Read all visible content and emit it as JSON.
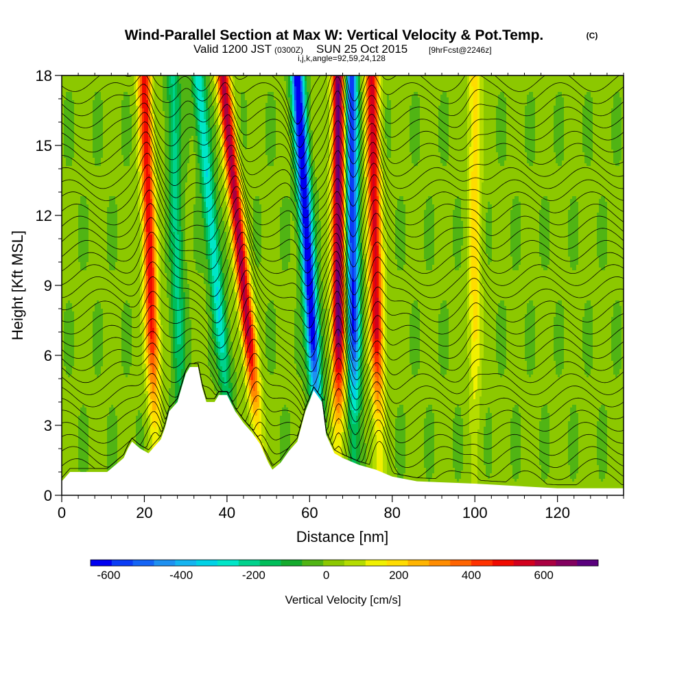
{
  "chart_data": {
    "type": "heatmap",
    "title": "Wind-Parallel Section at Max W: Vertical Velocity & Pot.Temp.",
    "title_mark": "(C)",
    "subtitle_main": "Valid 1200 JST",
    "subtitle_utc": "(0300Z)",
    "subtitle_date": "SUN 25 Oct 2015",
    "subtitle_fcst": "[9hrFcst@2246z]",
    "subtitle_ijk": "i,j,k,angle=92,59,24,128",
    "xlabel": "Distance [nm]",
    "ylabel": "Height [Kft MSL]",
    "xlim": [
      0,
      136
    ],
    "ylim": [
      0,
      18
    ],
    "x_ticks": [
      0,
      20,
      40,
      60,
      80,
      100,
      120
    ],
    "y_ticks": [
      0,
      3,
      6,
      9,
      12,
      15,
      18
    ],
    "colorbar": {
      "label": "Vertical Velocity [cm/s]",
      "tick_values": [
        -600,
        -400,
        -200,
        0,
        200,
        400,
        600
      ],
      "min": -650,
      "max": 750,
      "colors": [
        "#0000f0",
        "#0a3cf5",
        "#1464f5",
        "#1e90f0",
        "#14b4f0",
        "#00d2e6",
        "#00e6c8",
        "#00d28c",
        "#00be5a",
        "#14aa2d",
        "#50b414",
        "#8cc800",
        "#b4dc00",
        "#f0f000",
        "#ffdc00",
        "#ffb400",
        "#ff8c00",
        "#ff6400",
        "#ff3200",
        "#f00a00",
        "#d2001e",
        "#aa0041",
        "#82005f",
        "#5a007d"
      ]
    },
    "updrafts": [
      {
        "x_top": 20,
        "x_bot": 23,
        "peak_cm_s": 500
      },
      {
        "x_top": 39,
        "x_bot": 49,
        "peak_cm_s": 600
      },
      {
        "x_top": 67,
        "x_bot": 67,
        "peak_cm_s": 700
      },
      {
        "x_top": 75,
        "x_bot": 77,
        "peak_cm_s": 550
      },
      {
        "x_top": 100,
        "x_bot": 100,
        "peak_cm_s": 200
      }
    ],
    "downdrafts": [
      {
        "x_top": 57,
        "x_bot": 63,
        "peak_cm_s": -700
      },
      {
        "x_top": 70,
        "x_bot": 71,
        "peak_cm_s": -600
      },
      {
        "x_top": 33,
        "x_bot": 42,
        "peak_cm_s": -300
      },
      {
        "x_top": 27,
        "x_bot": 29,
        "peak_cm_s": -200
      }
    ],
    "terrain_kft": [
      [
        0,
        0.6
      ],
      [
        2,
        1.0
      ],
      [
        11,
        1.0
      ],
      [
        13,
        1.3
      ],
      [
        15,
        1.6
      ],
      [
        16,
        2.0
      ],
      [
        17,
        2.3
      ],
      [
        19,
        2.0
      ],
      [
        21,
        1.8
      ],
      [
        22,
        2.0
      ],
      [
        24,
        2.4
      ],
      [
        25,
        2.9
      ],
      [
        26,
        3.6
      ],
      [
        28,
        4.0
      ],
      [
        29,
        4.6
      ],
      [
        30,
        5.2
      ],
      [
        31,
        5.5
      ],
      [
        33,
        5.5
      ],
      [
        34,
        4.6
      ],
      [
        35,
        4.0
      ],
      [
        37,
        4.0
      ],
      [
        38,
        4.3
      ],
      [
        40,
        4.3
      ],
      [
        42,
        3.6
      ],
      [
        44,
        3.1
      ],
      [
        46,
        2.7
      ],
      [
        48,
        2.2
      ],
      [
        50,
        1.4
      ],
      [
        51,
        1.1
      ],
      [
        53,
        1.4
      ],
      [
        55,
        1.9
      ],
      [
        57,
        2.3
      ],
      [
        59,
        3.6
      ],
      [
        61,
        4.5
      ],
      [
        63,
        4.0
      ],
      [
        64,
        2.6
      ],
      [
        66,
        1.8
      ],
      [
        68,
        1.6
      ],
      [
        72,
        1.3
      ],
      [
        76,
        1.1
      ],
      [
        80,
        0.8
      ],
      [
        86,
        0.6
      ],
      [
        100,
        0.5
      ],
      [
        120,
        0.3
      ],
      [
        136,
        0.3
      ]
    ],
    "theta_contour_count": 34
  }
}
